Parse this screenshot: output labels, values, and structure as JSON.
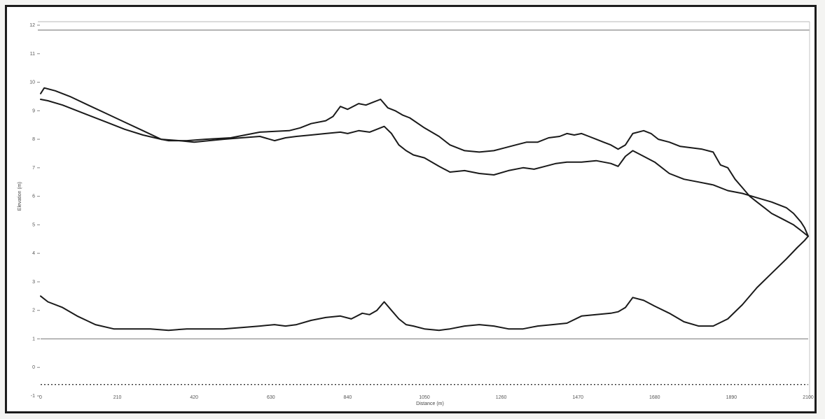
{
  "chart_data": {
    "type": "line",
    "title": "",
    "xlabel": "Distance (m)",
    "ylabel": "Elevation (m)",
    "xlim": [
      0,
      2100
    ],
    "ylim": [
      -1,
      12
    ],
    "x_ticks": [
      "0",
      "210",
      "420",
      "630",
      "840",
      "1050",
      "1260",
      "1470",
      "1680",
      "1890",
      "2100"
    ],
    "y_ticks": [
      "12",
      "11",
      "10",
      "9",
      "8",
      "7",
      "6",
      "5",
      "4",
      "3",
      "2",
      "1",
      "0",
      "-1"
    ],
    "colors": {
      "series": "#1a1a1a",
      "baseline": "#7a7a7a",
      "dotted": "#333333",
      "frame": "#1c1c1c"
    },
    "series": [
      {
        "x": [
          0,
          10,
          40,
          80,
          130,
          180,
          230,
          280,
          330,
          350,
          400,
          450,
          520,
          600,
          680,
          710,
          740,
          780,
          800,
          820,
          840,
          870,
          890,
          910,
          930,
          950,
          970,
          990,
          1010,
          1050,
          1090,
          1120,
          1160,
          1200,
          1240,
          1270,
          1300,
          1330,
          1360,
          1390,
          1420,
          1440,
          1460,
          1480,
          1500,
          1520,
          1540,
          1560,
          1580,
          1600,
          1620,
          1650,
          1670,
          1690,
          1720,
          1750,
          1780,
          1810,
          1840,
          1860,
          1880,
          1900,
          1920,
          1940,
          1960,
          1980,
          2000,
          2030,
          2060,
          2080,
          2100
        ],
        "values": [
          9.6,
          9.8,
          9.7,
          9.5,
          9.2,
          8.9,
          8.6,
          8.3,
          8.0,
          7.95,
          7.95,
          8.0,
          8.05,
          8.25,
          8.3,
          8.4,
          8.55,
          8.65,
          8.8,
          9.15,
          9.05,
          9.25,
          9.2,
          9.3,
          9.4,
          9.1,
          9.0,
          8.85,
          8.75,
          8.4,
          8.1,
          7.8,
          7.6,
          7.55,
          7.6,
          7.7,
          7.8,
          7.9,
          7.9,
          8.05,
          8.1,
          8.2,
          8.15,
          8.2,
          8.1,
          8.0,
          7.9,
          7.8,
          7.65,
          7.8,
          8.2,
          8.3,
          8.2,
          8.0,
          7.9,
          7.75,
          7.7,
          7.65,
          7.55,
          7.1,
          7.0,
          6.6,
          6.3,
          6.0,
          5.8,
          5.6,
          5.4,
          5.2,
          5.0,
          4.8,
          4.6
        ]
      },
      {
        "x": [
          0,
          20,
          60,
          120,
          180,
          230,
          280,
          330,
          380,
          420,
          460,
          500,
          550,
          600,
          640,
          670,
          700,
          740,
          780,
          820,
          840,
          870,
          900,
          920,
          940,
          960,
          980,
          1000,
          1020,
          1050,
          1090,
          1120,
          1160,
          1200,
          1240,
          1280,
          1320,
          1350,
          1380,
          1410,
          1440,
          1480,
          1520,
          1560,
          1580,
          1600,
          1620,
          1650,
          1680,
          1720,
          1760,
          1800,
          1840,
          1880,
          1920,
          1960,
          2000,
          2040,
          2060,
          2080,
          2090,
          2100
        ],
        "values": [
          9.4,
          9.35,
          9.2,
          8.9,
          8.6,
          8.35,
          8.15,
          8.0,
          7.95,
          7.9,
          7.95,
          8.0,
          8.05,
          8.1,
          7.95,
          8.05,
          8.1,
          8.15,
          8.2,
          8.25,
          8.2,
          8.3,
          8.25,
          8.35,
          8.45,
          8.2,
          7.8,
          7.6,
          7.45,
          7.35,
          7.05,
          6.85,
          6.9,
          6.8,
          6.75,
          6.9,
          7.0,
          6.95,
          7.05,
          7.15,
          7.2,
          7.2,
          7.25,
          7.15,
          7.05,
          7.4,
          7.6,
          7.4,
          7.2,
          6.8,
          6.6,
          6.5,
          6.4,
          6.2,
          6.1,
          5.95,
          5.8,
          5.6,
          5.4,
          5.1,
          4.9,
          4.6
        ]
      },
      {
        "x": [
          0,
          20,
          60,
          100,
          150,
          200,
          250,
          300,
          350,
          400,
          450,
          500,
          550,
          600,
          640,
          670,
          700,
          740,
          780,
          820,
          850,
          880,
          900,
          920,
          940,
          960,
          980,
          1000,
          1020,
          1050,
          1090,
          1120,
          1160,
          1200,
          1240,
          1280,
          1320,
          1360,
          1400,
          1440,
          1480,
          1520,
          1560,
          1580,
          1600,
          1620,
          1650,
          1680,
          1720,
          1760,
          1800,
          1840,
          1880,
          1920,
          1960,
          2000,
          2040,
          2070,
          2090,
          2100
        ],
        "values": [
          2.5,
          2.3,
          2.1,
          1.8,
          1.5,
          1.35,
          1.35,
          1.35,
          1.3,
          1.35,
          1.35,
          1.35,
          1.4,
          1.45,
          1.5,
          1.45,
          1.5,
          1.65,
          1.75,
          1.8,
          1.7,
          1.9,
          1.85,
          2.0,
          2.3,
          2.0,
          1.7,
          1.5,
          1.45,
          1.35,
          1.3,
          1.35,
          1.45,
          1.5,
          1.45,
          1.35,
          1.35,
          1.45,
          1.5,
          1.55,
          1.8,
          1.85,
          1.9,
          1.95,
          2.1,
          2.45,
          2.35,
          2.15,
          1.9,
          1.6,
          1.45,
          1.45,
          1.7,
          2.2,
          2.8,
          3.3,
          3.8,
          4.2,
          4.45,
          4.6
        ]
      }
    ]
  }
}
